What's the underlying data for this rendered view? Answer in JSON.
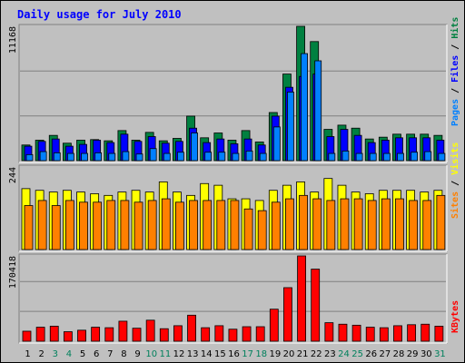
{
  "chart_data": {
    "type": "bar",
    "title": "Daily usage for July 2010",
    "colors": {
      "hits": "#008040",
      "files": "#0080ff",
      "pages": "#0000ff",
      "visits": "#ffff00",
      "sites": "#ff8000",
      "kbytes": "#ff0000",
      "weekend_label": "#00805c",
      "weekday_label": "#000000",
      "title_color": "#0000ff"
    },
    "x": [
      "1",
      "2",
      "3",
      "4",
      "5",
      "6",
      "7",
      "8",
      "9",
      "10",
      "11",
      "12",
      "13",
      "14",
      "15",
      "16",
      "17",
      "18",
      "19",
      "20",
      "21",
      "22",
      "23",
      "24",
      "25",
      "26",
      "27",
      "28",
      "29",
      "30",
      "31"
    ],
    "weekend_days": [
      "3",
      "4",
      "10",
      "11",
      "17",
      "18",
      "24",
      "25",
      "31"
    ],
    "panels": [
      {
        "name": "hits-files-pages",
        "ymax": 11168,
        "ytick": "11168",
        "side_labels": [
          "Pages",
          "Files",
          "Hits"
        ],
        "series": [
          {
            "name": "Hits",
            "values": [
              1300,
              1700,
              2100,
              1450,
              1700,
              1750,
              1650,
              2500,
              1700,
              2350,
              1650,
              1850,
              3700,
              1900,
              2300,
              1700,
              2500,
              1550,
              4000,
              7200,
              11168,
              9900,
              2600,
              2950,
              2700,
              1800,
              1950,
              2200,
              2200,
              2200,
              2100
            ]
          },
          {
            "name": "Files",
            "values": [
              500,
              750,
              650,
              600,
              600,
              650,
              600,
              750,
              550,
              1000,
              600,
              700,
              2300,
              700,
              700,
              600,
              800,
              600,
              2800,
              5700,
              8900,
              8300,
              600,
              800,
              600,
              600,
              600,
              600,
              700,
              750,
              600
            ]
          },
          {
            "name": "Pages",
            "values": [
              1200,
              1600,
              1800,
              1200,
              1350,
              1700,
              1500,
              2200,
              1600,
              2000,
              1450,
              1600,
              2700,
              1500,
              1800,
              1400,
              1800,
              1300,
              3700,
              6100,
              7000,
              7200,
              2000,
              2600,
              2100,
              1500,
              1700,
              1900,
              1900,
              1900,
              1700
            ]
          }
        ]
      },
      {
        "name": "visits-sites",
        "ymax": 244,
        "ytick": "244",
        "side_labels": [
          "Sites",
          "/",
          "Visits"
        ],
        "series": [
          {
            "name": "Visits",
            "values": [
              180,
              175,
              170,
              175,
              170,
              165,
              160,
              170,
              175,
              170,
              200,
              170,
              160,
              195,
              190,
              150,
              150,
              145,
              175,
              190,
              200,
              170,
              210,
              190,
              170,
              165,
              175,
              175,
              175,
              170,
              175
            ]
          },
          {
            "name": "Sites",
            "values": [
              130,
              145,
              130,
              145,
              140,
              140,
              145,
              145,
              140,
              145,
              150,
              140,
              145,
              145,
              145,
              145,
              120,
              115,
              140,
              150,
              160,
              150,
              145,
              150,
              150,
              145,
              150,
              150,
              145,
              145,
              160
            ]
          }
        ]
      },
      {
        "name": "kbytes",
        "ymax": 170418,
        "ytick": "170418",
        "side_labels": [
          "KBytes"
        ],
        "series": [
          {
            "name": "KBytes",
            "values": [
              20000,
              28000,
              30000,
              19000,
              22000,
              28000,
              27000,
              40000,
              26000,
              42000,
              25000,
              31000,
              52000,
              27000,
              31000,
              24000,
              29000,
              29000,
              64000,
              107000,
              170418,
              144000,
              37000,
              34000,
              32000,
              28000,
              27000,
              31000,
              33000,
              34000,
              30000
            ]
          }
        ]
      }
    ]
  }
}
